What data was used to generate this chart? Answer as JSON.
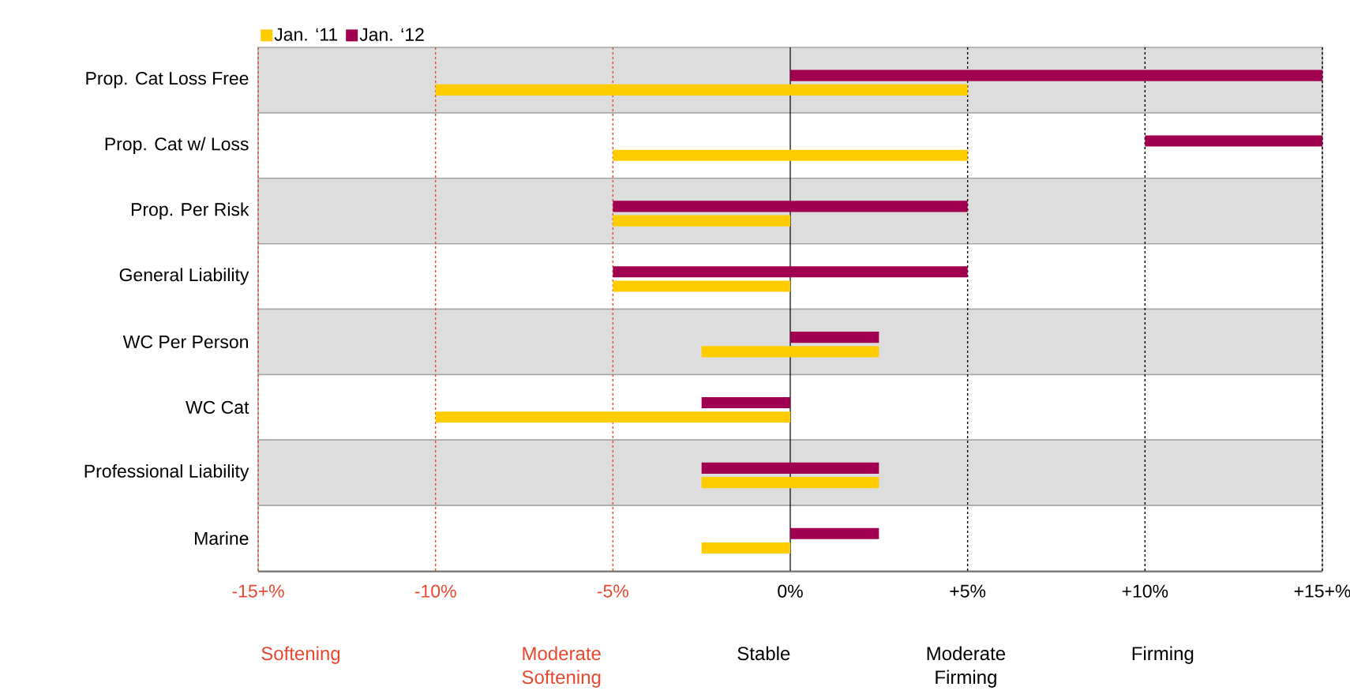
{
  "chart_data": {
    "type": "bar",
    "orientation": "horizontal",
    "categories": [
      "Prop. Cat Loss Free",
      "Prop. Cat w/ Loss",
      "Prop. Per Risk",
      "General Liability",
      "WC Per Person",
      "WC Cat",
      "Professional Liability",
      "Marine"
    ],
    "series": [
      {
        "name": "Jan. ‘11",
        "color": "#ffcc00",
        "base": [
          -10,
          -5,
          -5,
          -5,
          -2.5,
          -10,
          -2.5,
          -2.5
        ],
        "values": [
          15,
          10,
          5,
          5,
          5,
          10,
          5,
          2.5
        ]
      },
      {
        "name": "Jan. ‘12",
        "color": "#a0004f",
        "base": [
          0,
          10,
          -5,
          -5,
          0,
          -2.5,
          -2.5,
          0
        ],
        "values": [
          15,
          5,
          10,
          10,
          2.5,
          2.5,
          5,
          2.5
        ]
      }
    ],
    "xlim": [
      -15,
      15
    ],
    "xticks": [
      {
        "value": -15,
        "label": "-15+%"
      },
      {
        "value": -10,
        "label": "-10%"
      },
      {
        "value": -5,
        "label": "-5%"
      },
      {
        "value": 0,
        "label": "0%"
      },
      {
        "value": 5,
        "label": "+5%"
      },
      {
        "value": 10,
        "label": "+10%"
      },
      {
        "value": 15,
        "label": "+15+%"
      }
    ],
    "grid": "x",
    "legend": "top left",
    "annotations": [
      "Softening",
      "Moderate Softening",
      "Stable",
      "Moderate Firming",
      "Firming"
    ]
  }
}
